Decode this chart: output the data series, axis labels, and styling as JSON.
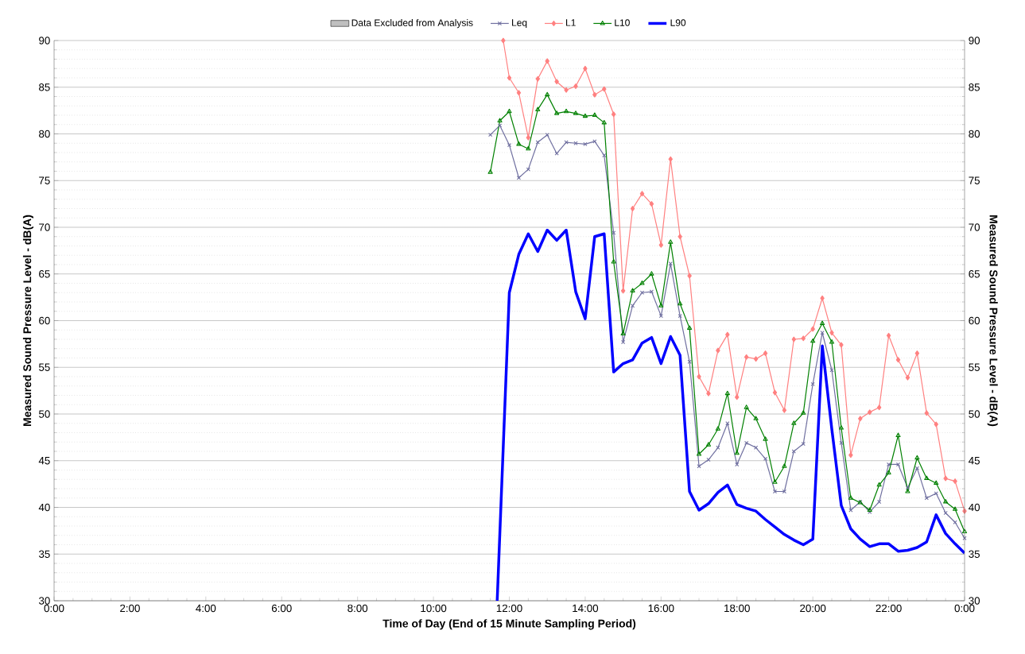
{
  "chart_data": {
    "type": "line",
    "xlabel": "Time of Day (End of 15 Minute Sampling Period)",
    "ylabel": "Measured Sound Pressure Level - dB(A)",
    "y2label": "Measured Sound Pressure Level - dB(A)",
    "xlim": [
      0,
      24
    ],
    "xticks": [
      {
        "value": 0,
        "label": "0:00"
      },
      {
        "value": 2,
        "label": "2:00"
      },
      {
        "value": 4,
        "label": "4:00"
      },
      {
        "value": 6,
        "label": "6:00"
      },
      {
        "value": 8,
        "label": "8:00"
      },
      {
        "value": 10,
        "label": "10:00"
      },
      {
        "value": 12,
        "label": "12:00"
      },
      {
        "value": 14,
        "label": "14:00"
      },
      {
        "value": 16,
        "label": "16:00"
      },
      {
        "value": 18,
        "label": "18:00"
      },
      {
        "value": 20,
        "label": "20:00"
      },
      {
        "value": 22,
        "label": "22:00"
      },
      {
        "value": 24,
        "label": "0:00"
      }
    ],
    "ylim": [
      30,
      90
    ],
    "yticks": [
      30,
      35,
      40,
      45,
      50,
      55,
      60,
      65,
      70,
      75,
      80,
      85,
      90
    ],
    "y2lim": [
      30,
      90
    ],
    "y2ticks": [
      30,
      35,
      40,
      45,
      50,
      55,
      60,
      65,
      70,
      75,
      80,
      85,
      90
    ],
    "grid": "y",
    "legend": "top",
    "line_style": "solid",
    "x": [
      11.5,
      11.75,
      12,
      12.25,
      12.5,
      12.75,
      13,
      13.25,
      13.5,
      13.75,
      14,
      14.25,
      14.5,
      14.75,
      15,
      15.25,
      15.5,
      15.75,
      16,
      16.25,
      16.5,
      16.75,
      17,
      17.25,
      17.5,
      17.75,
      18,
      18.25,
      18.5,
      18.75,
      19,
      19.25,
      19.5,
      19.75,
      20,
      20.25,
      20.5,
      20.75,
      21,
      21.25,
      21.5,
      21.75,
      22,
      22.25,
      22.5,
      22.75,
      23,
      23.25,
      23.5,
      23.75,
      24
    ],
    "series": [
      {
        "name": "Data Excluded from Analysis",
        "type": "area",
        "color": "#bfbfbf",
        "values": [
          null,
          null,
          null,
          null,
          null,
          null,
          null,
          null,
          null,
          null,
          null,
          null,
          null,
          null,
          null,
          null,
          null,
          null,
          null,
          null,
          null,
          null,
          null,
          null,
          null,
          null,
          null,
          null,
          null,
          null,
          null,
          null,
          null,
          null,
          null,
          null,
          null,
          null,
          null,
          null,
          null,
          null,
          null,
          null,
          null,
          null,
          null,
          null,
          null,
          null,
          null
        ]
      },
      {
        "name": "Leq",
        "color": "#7070a0",
        "marker": "cross",
        "values": [
          79.9,
          80.9,
          78.8,
          75.3,
          76.2,
          79.1,
          79.9,
          77.9,
          79.1,
          79.0,
          78.9,
          79.2,
          77.7,
          69.4,
          57.7,
          61.6,
          63.0,
          63.1,
          60.5,
          66.1,
          60.5,
          55.6,
          44.4,
          45.1,
          46.4,
          49.0,
          44.6,
          46.9,
          46.4,
          45.2,
          41.7,
          41.7,
          46.0,
          46.8,
          53.2,
          58.7,
          54.7,
          46.9,
          39.7,
          40.6,
          39.5,
          40.6,
          44.6,
          44.6,
          42.1,
          44.2,
          41.0,
          41.5,
          39.4,
          38.4,
          36.7
        ]
      },
      {
        "name": "L1",
        "color": "#ff8080",
        "marker": "diamond",
        "x": [
          11.84,
          12,
          12.25,
          12.5,
          12.75,
          13,
          13.25,
          13.5,
          13.75,
          14,
          14.25,
          14.5,
          14.75,
          15,
          15.25,
          15.5,
          15.75,
          16,
          16.25,
          16.5,
          16.75,
          17,
          17.25,
          17.5,
          17.75,
          18,
          18.25,
          18.5,
          18.75,
          19,
          19.25,
          19.5,
          19.75,
          20,
          20.25,
          20.5,
          20.75,
          21,
          21.25,
          21.5,
          21.75,
          22,
          22.25,
          22.5,
          22.75,
          23,
          23.25,
          23.5,
          23.75,
          24
        ],
        "values": [
          90,
          86.0,
          84.4,
          79.6,
          85.9,
          87.8,
          85.6,
          84.7,
          85.1,
          87.0,
          84.2,
          84.8,
          82.1,
          63.2,
          72.0,
          73.6,
          72.5,
          68.1,
          77.3,
          69.0,
          64.8,
          54.0,
          52.2,
          56.8,
          58.5,
          51.8,
          56.1,
          55.9,
          56.5,
          52.3,
          50.4,
          58.0,
          58.1,
          59.1,
          62.4,
          58.7,
          57.4,
          45.6,
          49.5,
          50.2,
          50.7,
          58.4,
          55.8,
          53.9,
          56.5,
          50.1,
          48.9,
          43.1,
          42.8,
          39.6
        ]
      },
      {
        "name": "L10",
        "color": "#008000",
        "marker": "triangle",
        "values": [
          75.9,
          81.4,
          82.4,
          78.9,
          78.4,
          82.6,
          84.2,
          82.2,
          82.4,
          82.2,
          81.9,
          82.0,
          81.2,
          66.3,
          58.6,
          63.2,
          64.0,
          65.0,
          61.6,
          68.4,
          61.8,
          59.2,
          45.7,
          46.7,
          48.4,
          52.2,
          45.8,
          50.7,
          49.5,
          47.3,
          42.7,
          44.4,
          49.0,
          50.1,
          57.8,
          59.7,
          57.7,
          48.5,
          41.0,
          40.5,
          39.7,
          42.4,
          43.7,
          47.7,
          41.7,
          45.3,
          43.1,
          42.6,
          40.6,
          39.8,
          37.4
        ]
      },
      {
        "name": "L90",
        "color": "#0000ff",
        "marker": "none",
        "x": [
          11.68,
          12,
          12.25,
          12.5,
          12.75,
          13,
          13.25,
          13.5,
          13.75,
          14,
          14.25,
          14.5,
          14.75,
          15,
          15.25,
          15.5,
          15.75,
          16,
          16.25,
          16.5,
          16.75,
          17,
          17.25,
          17.5,
          17.75,
          18,
          18.25,
          18.5,
          18.75,
          19,
          19.25,
          19.5,
          19.75,
          20,
          20.25,
          20.5,
          20.75,
          21,
          21.25,
          21.5,
          21.75,
          22,
          22.25,
          22.5,
          22.75,
          23,
          23.25,
          23.5,
          23.75,
          24
        ],
        "values": [
          30,
          63.0,
          67.1,
          69.3,
          67.4,
          69.7,
          68.6,
          69.7,
          63.1,
          60.2,
          69.0,
          69.3,
          54.5,
          55.4,
          55.8,
          57.6,
          58.2,
          55.4,
          58.3,
          56.3,
          41.7,
          39.7,
          40.4,
          41.6,
          42.4,
          40.3,
          39.9,
          39.6,
          38.7,
          37.9,
          37.1,
          36.5,
          36.0,
          36.6,
          57.3,
          48.4,
          40.2,
          37.7,
          36.6,
          35.8,
          36.1,
          36.1,
          35.3,
          35.4,
          35.7,
          36.3,
          39.2,
          37.2,
          36.1,
          35.1
        ]
      }
    ]
  }
}
